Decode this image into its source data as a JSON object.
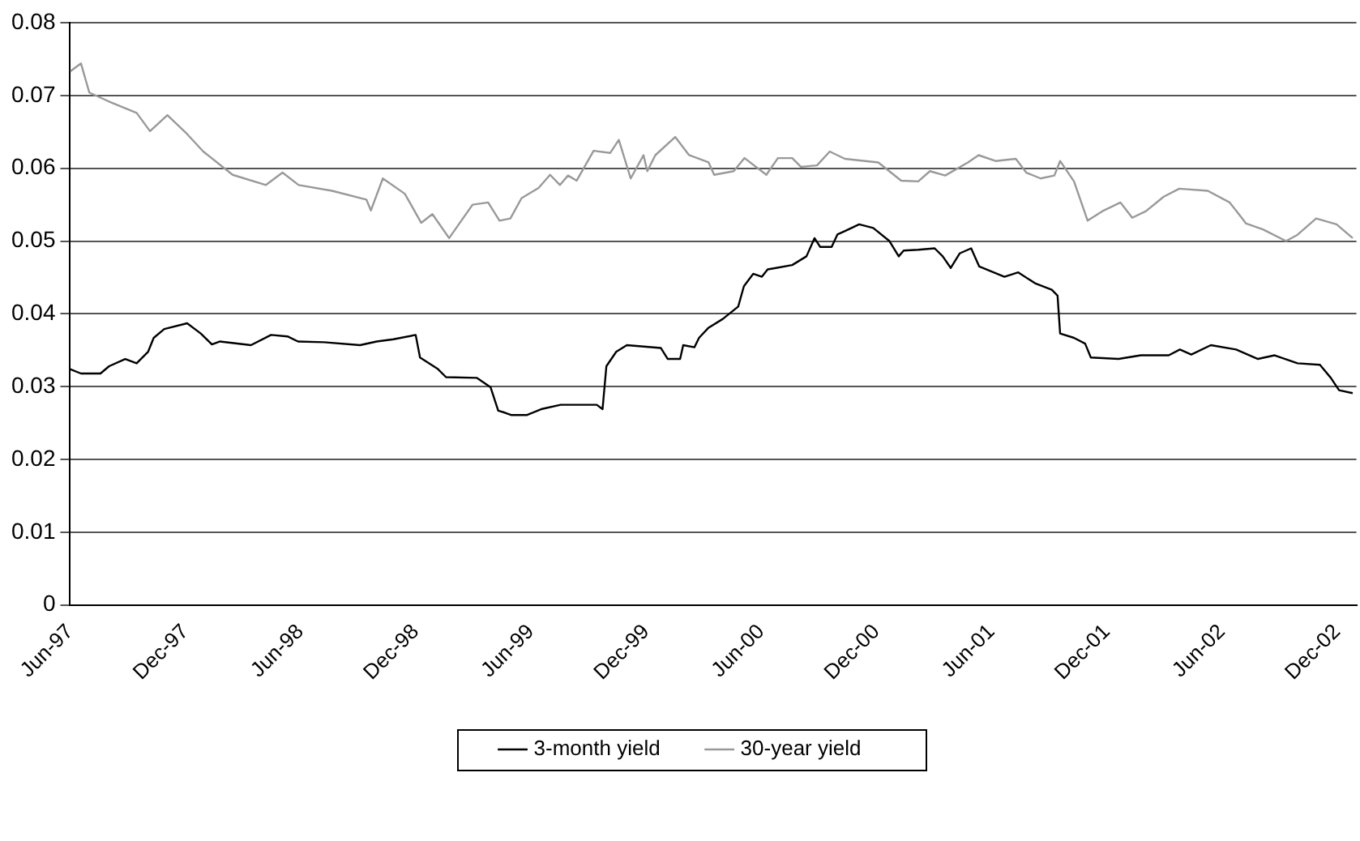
{
  "chart_data": {
    "type": "line",
    "xlim": [
      "1997-06-01",
      "2003-01-01"
    ],
    "xticks": [
      {
        "value": "1997-06-01",
        "label": "Jun-97"
      },
      {
        "value": "1997-12-01",
        "label": "Dec-97"
      },
      {
        "value": "1998-06-01",
        "label": "Jun-98"
      },
      {
        "value": "1998-12-01",
        "label": "Dec-98"
      },
      {
        "value": "1999-06-01",
        "label": "Jun-99"
      },
      {
        "value": "1999-12-01",
        "label": "Dec-99"
      },
      {
        "value": "2000-06-01",
        "label": "Jun-00"
      },
      {
        "value": "2000-12-01",
        "label": "Dec-00"
      },
      {
        "value": "2001-06-01",
        "label": "Jun-01"
      },
      {
        "value": "2001-12-01",
        "label": "Dec-01"
      },
      {
        "value": "2002-06-01",
        "label": "Jun-02"
      },
      {
        "value": "2002-12-01",
        "label": "Dec-02"
      }
    ],
    "ylim": [
      0,
      0.08
    ],
    "yticks": [
      0,
      0.01,
      0.02,
      0.03,
      0.04,
      0.05,
      0.06,
      0.07,
      0.08
    ],
    "grid": "y",
    "legend": "bottom",
    "marker": "none",
    "line_style": "solid",
    "series": [
      {
        "name": "3-month yield",
        "color": "#000000",
        "x": [
          "1997-06-01",
          "1997-06-18",
          "1997-07-19",
          "1997-08-02",
          "1997-08-28",
          "1997-09-15",
          "1997-10-03",
          "1997-10-12",
          "1997-10-29",
          "1997-12-04",
          "1997-12-26",
          "1998-01-13",
          "1998-01-26",
          "1998-03-14",
          "1998-04-15",
          "1998-05-11",
          "1998-05-28",
          "1998-07-08",
          "1998-09-04",
          "1998-09-30",
          "1998-10-27",
          "1998-12-01",
          "1998-12-08",
          "1999-01-06",
          "1999-01-19",
          "1999-03-07",
          "1999-03-29",
          "1999-04-10",
          "1999-04-21",
          "1999-04-30",
          "1999-05-26",
          "1999-06-17",
          "1999-07-18",
          "1999-09-14",
          "1999-09-23",
          "1999-09-29",
          "1999-10-15",
          "1999-11-01",
          "1999-12-25",
          "2000-01-05",
          "2000-01-25",
          "2000-01-30",
          "2000-02-16",
          "2000-02-23",
          "2000-03-09",
          "2000-04-01",
          "2000-04-25",
          "2000-05-04",
          "2000-05-19",
          "2000-06-02",
          "2000-06-11",
          "2000-06-24",
          "2000-07-20",
          "2000-08-12",
          "2000-08-25",
          "2000-09-03",
          "2000-09-21",
          "2000-09-30",
          "2000-10-13",
          "2000-11-04",
          "2000-11-26",
          "2000-12-22",
          "2001-01-06",
          "2001-01-14",
          "2001-02-06",
          "2001-03-02",
          "2001-03-15",
          "2001-03-28",
          "2001-04-11",
          "2001-04-29",
          "2001-05-12",
          "2001-06-21",
          "2001-07-13",
          "2001-08-09",
          "2001-09-05",
          "2001-09-14",
          "2001-09-18",
          "2001-10-10",
          "2001-10-28",
          "2001-11-06",
          "2001-12-20",
          "2002-01-25",
          "2002-03-08",
          "2002-03-26",
          "2002-04-13",
          "2002-05-14",
          "2002-06-23",
          "2002-07-28",
          "2002-08-24",
          "2002-09-29",
          "2002-11-04",
          "2002-11-21",
          "2002-12-04",
          "2002-12-26"
        ],
        "values": [
          0.0324,
          0.0318,
          0.0318,
          0.0328,
          0.0338,
          0.0332,
          0.0348,
          0.0367,
          0.0379,
          0.0387,
          0.0373,
          0.0358,
          0.0362,
          0.0357,
          0.0371,
          0.0369,
          0.0362,
          0.0361,
          0.0357,
          0.0362,
          0.0365,
          0.0371,
          0.034,
          0.0324,
          0.0313,
          0.0312,
          0.0299,
          0.0267,
          0.0264,
          0.0261,
          0.0261,
          0.0269,
          0.0275,
          0.0275,
          0.0269,
          0.0328,
          0.0348,
          0.0357,
          0.0353,
          0.0338,
          0.0338,
          0.0357,
          0.0354,
          0.0367,
          0.0381,
          0.0393,
          0.041,
          0.0438,
          0.0455,
          0.0451,
          0.0461,
          0.0463,
          0.0467,
          0.0479,
          0.0504,
          0.0492,
          0.0492,
          0.0509,
          0.0514,
          0.0523,
          0.0518,
          0.05,
          0.0479,
          0.0487,
          0.0488,
          0.049,
          0.0479,
          0.0463,
          0.0483,
          0.049,
          0.0465,
          0.0451,
          0.0457,
          0.0442,
          0.0433,
          0.0425,
          0.0373,
          0.0367,
          0.0359,
          0.034,
          0.0338,
          0.0343,
          0.0343,
          0.0351,
          0.0344,
          0.0357,
          0.0351,
          0.0338,
          0.0343,
          0.0332,
          0.033,
          0.0312,
          0.0295,
          0.0291
        ]
      },
      {
        "name": "30-year yield",
        "color": "#999999",
        "x": [
          "1997-06-01",
          "1997-06-18",
          "1997-07-01",
          "1997-08-01",
          "1997-09-15",
          "1997-10-06",
          "1997-11-03",
          "1997-12-04",
          "1997-12-30",
          "1998-02-14",
          "1998-04-07",
          "1998-05-03",
          "1998-05-29",
          "1998-07-21",
          "1998-09-14",
          "1998-09-21",
          "1998-10-10",
          "1998-11-14",
          "1998-12-10",
          "1998-12-28",
          "1999-01-24",
          "1999-02-28",
          "1999-03-25",
          "1999-04-12",
          "1999-04-29",
          "1999-05-17",
          "1999-06-13",
          "1999-07-01",
          "1999-07-17",
          "1999-07-30",
          "1999-08-13",
          "1999-09-09",
          "1999-10-05",
          "1999-10-19",
          "1999-11-07",
          "1999-11-27",
          "1999-12-03",
          "1999-12-16",
          "2000-01-17",
          "2000-02-08",
          "2000-03-09",
          "2000-03-18",
          "2000-04-18",
          "2000-05-05",
          "2000-06-09",
          "2000-06-27",
          "2000-07-20",
          "2000-08-03",
          "2000-08-29",
          "2000-09-18",
          "2000-10-12",
          "2000-12-04",
          "2001-01-10",
          "2001-02-06",
          "2001-02-23",
          "2001-03-19",
          "2001-04-24",
          "2001-05-11",
          "2001-06-07",
          "2001-07-09",
          "2001-07-26",
          "2001-08-18",
          "2001-09-09",
          "2001-09-18",
          "2001-10-10",
          "2001-11-01",
          "2001-11-24",
          "2001-12-23",
          "2002-01-11",
          "2002-02-02",
          "2002-02-28",
          "2002-03-25",
          "2002-05-09",
          "2002-06-13",
          "2002-07-09",
          "2002-08-05",
          "2002-09-11",
          "2002-09-28",
          "2002-10-29",
          "2002-11-30",
          "2002-12-26"
        ],
        "values": [
          0.0733,
          0.0744,
          0.0704,
          0.0692,
          0.0676,
          0.0651,
          0.0673,
          0.0647,
          0.0623,
          0.0591,
          0.0577,
          0.0594,
          0.0577,
          0.0569,
          0.0557,
          0.0542,
          0.0586,
          0.0565,
          0.0525,
          0.0537,
          0.0504,
          0.055,
          0.0553,
          0.0528,
          0.0531,
          0.0559,
          0.0573,
          0.0591,
          0.0577,
          0.059,
          0.0583,
          0.0624,
          0.0621,
          0.0639,
          0.0586,
          0.0618,
          0.0596,
          0.0618,
          0.0643,
          0.0618,
          0.0608,
          0.0591,
          0.0596,
          0.0614,
          0.0591,
          0.0614,
          0.0614,
          0.0602,
          0.0604,
          0.0623,
          0.0613,
          0.0608,
          0.0583,
          0.0582,
          0.0596,
          0.059,
          0.0608,
          0.0618,
          0.061,
          0.0613,
          0.0594,
          0.0586,
          0.059,
          0.061,
          0.0582,
          0.0528,
          0.0541,
          0.0553,
          0.0532,
          0.0541,
          0.0561,
          0.0572,
          0.0569,
          0.0553,
          0.0524,
          0.0516,
          0.05,
          0.0508,
          0.0531,
          0.0523,
          0.0504
        ]
      }
    ]
  }
}
